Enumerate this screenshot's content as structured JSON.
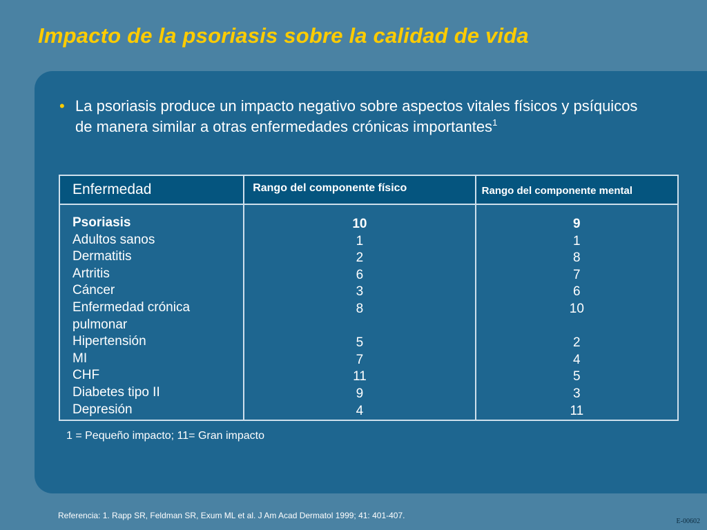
{
  "slide": {
    "title": "Impacto de la psoriasis sobre la calidad de vida",
    "bullet": {
      "text": "La psoriasis produce un impacto negativo sobre aspectos vitales físicos y psíquicos de manera similar a otras enfermedades crónicas importantes",
      "superscript": "1"
    },
    "table": {
      "headers": {
        "disease": "Enfermedad",
        "physical": "Rango del componente físico",
        "mental": "Rango del componente mental"
      },
      "rows": [
        {
          "disease": "Psoriasis",
          "physical": "10",
          "mental": "9"
        },
        {
          "disease": "Adultos sanos",
          "physical": "1",
          "mental": "1"
        },
        {
          "disease": "Dermatitis",
          "physical": "2",
          "mental": "8"
        },
        {
          "disease": "Artritis",
          "physical": "6",
          "mental": "7"
        },
        {
          "disease": "Cáncer",
          "physical": "3",
          "mental": "6"
        },
        {
          "disease": "Enfermedad crónica",
          "disease_cont": "pulmonar",
          "physical": "8",
          "mental": "10"
        },
        {
          "disease": "Hipertensión",
          "physical": "5",
          "mental": "2"
        },
        {
          "disease": "MI",
          "physical": "7",
          "mental": "4"
        },
        {
          "disease": "CHF",
          "physical": "11",
          "mental": "5"
        },
        {
          "disease": "Diabetes tipo II",
          "physical": "9",
          "mental": "3"
        },
        {
          "disease": "Depresión",
          "physical": "4",
          "mental": "11"
        }
      ]
    },
    "footnote": "1 = Pequeño impacto; 11= Gran impacto",
    "reference": "Referencia:   1.  Rapp SR, Feldman SR, Exum ML et al. J Am Acad Dermatol 1999; 41: 401-407.",
    "code": "E-00602",
    "colors": {
      "background": "#4a82a3",
      "panel": "#1e6690",
      "header_fill": "#05557f",
      "title": "#ffcc00",
      "bullet": "#ffcc00"
    }
  }
}
